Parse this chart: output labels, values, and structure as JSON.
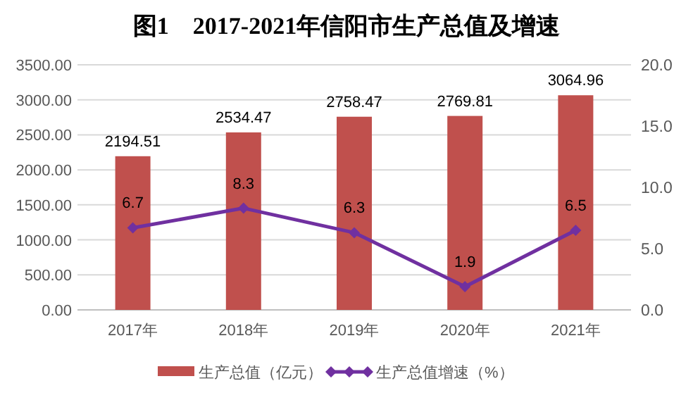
{
  "chart_data": {
    "type": "bar",
    "title": "图1　2017-2021年信阳市生产总值及增速",
    "categories": [
      "2017年",
      "2018年",
      "2019年",
      "2020年",
      "2021年"
    ],
    "series": [
      {
        "name": "生产总值（亿元）",
        "color": "#c0504d",
        "values": [
          2194.51,
          2534.47,
          2758.47,
          2769.81,
          3064.96
        ]
      },
      {
        "name": "生产总值增速（%）",
        "type": "line",
        "axis": "y2",
        "color": "#7030a0",
        "values": [
          6.7,
          8.3,
          6.3,
          1.9,
          6.5
        ]
      }
    ],
    "ylim": [
      0,
      3500
    ],
    "yticks": [
      {
        "value": 0,
        "label": "0.00"
      },
      {
        "value": 500,
        "label": "500.00"
      },
      {
        "value": 1000,
        "label": "1000.00"
      },
      {
        "value": 1500,
        "label": "1500.00"
      },
      {
        "value": 2000,
        "label": "2000.00"
      },
      {
        "value": 2500,
        "label": "2500.00"
      },
      {
        "value": 3000,
        "label": "3000.00"
      },
      {
        "value": 3500,
        "label": "3500.00"
      }
    ],
    "y2lim": [
      0,
      20
    ],
    "y2ticks": [
      {
        "value": 0,
        "label": "0.0"
      },
      {
        "value": 5,
        "label": "5.0"
      },
      {
        "value": 10,
        "label": "10.0"
      },
      {
        "value": 15,
        "label": "15.0"
      },
      {
        "value": 20,
        "label": "20.0"
      }
    ],
    "grid": "y",
    "legend": "bottom",
    "marker": "diamond",
    "data_labels": true
  }
}
